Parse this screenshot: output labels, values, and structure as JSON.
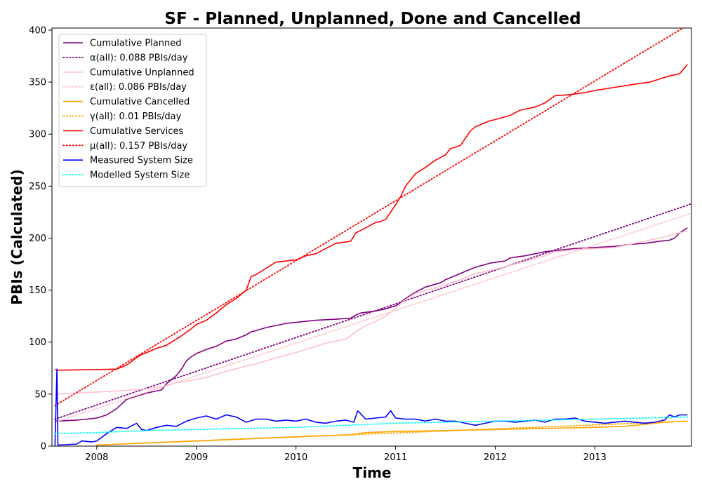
{
  "chart_data": {
    "type": "line",
    "title": "SF - Planned, Unplanned, Done  and Cancelled",
    "xlabel": "Time",
    "ylabel": "PBIs (Calculated)",
    "xlim": [
      2007.55,
      2013.97
    ],
    "ylim": [
      0,
      402
    ],
    "x_ticks": [
      2008,
      2009,
      2010,
      2011,
      2012,
      2013
    ],
    "y_ticks": [
      0,
      50,
      100,
      150,
      200,
      250,
      300,
      350,
      400
    ],
    "grid": false,
    "legend_position": "upper-left",
    "series": [
      {
        "name": "Cumulative Planned",
        "color": "#800080",
        "style": "solid",
        "x": [
          2007.58,
          2007.8,
          2007.9,
          2008.0,
          2008.1,
          2008.2,
          2008.3,
          2008.4,
          2008.5,
          2008.65,
          2008.7,
          2008.8,
          2008.85,
          2008.9,
          2008.95,
          2009.0,
          2009.05,
          2009.1,
          2009.2,
          2009.3,
          2009.4,
          2009.5,
          2009.55,
          2009.6,
          2009.7,
          2009.8,
          2009.9,
          2010.0,
          2010.2,
          2010.4,
          2010.55,
          2010.6,
          2010.65,
          2010.8,
          2010.9,
          2011.0,
          2011.05,
          2011.1,
          2011.2,
          2011.3,
          2011.45,
          2011.5,
          2011.6,
          2011.7,
          2011.8,
          2011.95,
          2012.1,
          2012.15,
          2012.3,
          2012.5,
          2012.6,
          2012.7,
          2012.8,
          2013.0,
          2013.2,
          2013.35,
          2013.5,
          2013.65,
          2013.75,
          2013.8,
          2013.85,
          2013.93
        ],
        "y": [
          24,
          25,
          26,
          27,
          30,
          36,
          45,
          48,
          51,
          54,
          60,
          68,
          74,
          82,
          86,
          89,
          91,
          93,
          96,
          101,
          103,
          107,
          110,
          111,
          114,
          116,
          118,
          119,
          121,
          122,
          123,
          126,
          128,
          130,
          132,
          135,
          138,
          142,
          148,
          153,
          157,
          160,
          164,
          168,
          172,
          176,
          178,
          181,
          183,
          187,
          188,
          189,
          190,
          191,
          192,
          194,
          195,
          197,
          198,
          200,
          205,
          210
        ]
      },
      {
        "name": "α(all): 0.088 PBIs/day",
        "color": "#800080",
        "style": "dotted",
        "x": [
          2007.58,
          2013.97
        ],
        "y": [
          26,
          233
        ]
      },
      {
        "name": "Cumulative Unplanned",
        "color": "#ffc0cb",
        "style": "solid",
        "x": [
          2007.58,
          2007.8,
          2008.0,
          2008.2,
          2008.5,
          2008.7,
          2008.8,
          2009.0,
          2009.1,
          2009.2,
          2009.3,
          2009.5,
          2009.6,
          2009.7,
          2009.8,
          2010.0,
          2010.1,
          2010.2,
          2010.3,
          2010.4,
          2010.5,
          2010.55,
          2010.6,
          2010.7,
          2010.8,
          2010.9,
          2011.0,
          2011.05,
          2011.1,
          2011.2,
          2011.35,
          2011.5,
          2011.65,
          2011.8,
          2012.0,
          2012.2,
          2012.35,
          2012.5,
          2012.6,
          2012.8,
          2013.0,
          2013.2,
          2013.35,
          2013.5,
          2013.65,
          2013.8,
          2013.93
        ],
        "y": [
          50,
          51,
          52,
          53,
          55,
          58,
          61,
          64,
          66,
          69,
          72,
          77,
          79,
          82,
          85,
          90,
          93,
          96,
          99,
          101,
          103,
          106,
          110,
          116,
          120,
          125,
          132,
          137,
          141,
          147,
          151,
          155,
          160,
          166,
          170,
          175,
          179,
          183,
          187,
          189,
          190,
          191,
          194,
          197,
          200,
          204,
          207
        ]
      },
      {
        "name": "ε(all): 0.086 PBIs/day",
        "color": "#ffc0cb",
        "style": "dotted",
        "x": [
          2007.58,
          2013.97
        ],
        "y": [
          23,
          224
        ]
      },
      {
        "name": "Cumulative Cancelled",
        "color": "#ffa500",
        "style": "solid",
        "x": [
          2008.0,
          2008.5,
          2009.0,
          2009.5,
          2010.0,
          2010.3,
          2010.55,
          2010.7,
          2011.0,
          2011.5,
          2012.0,
          2012.5,
          2013.0,
          2013.3,
          2013.5,
          2013.7,
          2013.93
        ],
        "y": [
          1,
          3,
          5,
          7,
          9,
          10,
          11,
          13,
          14,
          15,
          16,
          17,
          18,
          19,
          21,
          23,
          24
        ]
      },
      {
        "name": "γ(all): 0.01 PBIs/day",
        "color": "#ffa500",
        "style": "dotted",
        "x": [
          2008.0,
          2013.93
        ],
        "y": [
          1,
          24
        ]
      },
      {
        "name": "Cumulative Services",
        "color": "#ff0000",
        "style": "solid",
        "x": [
          2007.58,
          2007.6,
          2008.2,
          2008.3,
          2008.4,
          2008.45,
          2008.5,
          2008.6,
          2008.7,
          2008.75,
          2008.85,
          2008.95,
          2009.0,
          2009.1,
          2009.2,
          2009.3,
          2009.4,
          2009.5,
          2009.55,
          2009.6,
          2009.7,
          2009.8,
          2009.9,
          2010.0,
          2010.1,
          2010.2,
          2010.3,
          2010.4,
          2010.55,
          2010.6,
          2010.7,
          2010.8,
          2010.85,
          2010.9,
          2011.0,
          2011.05,
          2011.1,
          2011.2,
          2011.3,
          2011.4,
          2011.5,
          2011.55,
          2011.65,
          2011.7,
          2011.75,
          2011.8,
          2011.9,
          2011.95,
          2012.0,
          2012.15,
          2012.25,
          2012.4,
          2012.5,
          2012.6,
          2012.75,
          2012.9,
          2013.0,
          2013.2,
          2013.4,
          2013.55,
          2013.65,
          2013.75,
          2013.85,
          2013.93
        ],
        "y": [
          74,
          73,
          74,
          78,
          85,
          88,
          90,
          94,
          97,
          100,
          106,
          113,
          117,
          121,
          128,
          136,
          142,
          150,
          163,
          165,
          171,
          177,
          178,
          179,
          183,
          185,
          190,
          195,
          197,
          205,
          210,
          215,
          216,
          218,
          232,
          240,
          250,
          262,
          268,
          275,
          280,
          286,
          289,
          296,
          303,
          307,
          311,
          313,
          314,
          318,
          323,
          326,
          330,
          337,
          338,
          340,
          342,
          345,
          348,
          350,
          353,
          356,
          358,
          367
        ]
      },
      {
        "name": "μ(all): 0.157 PBIs/day",
        "color": "#ff0000",
        "style": "dotted",
        "x": [
          2007.58,
          2013.97
        ],
        "y": [
          39,
          407
        ]
      },
      {
        "name": "Measured System Size",
        "color": "#0000ff",
        "style": "solid",
        "x": [
          2007.58,
          2007.6,
          2007.61,
          2007.62,
          2007.8,
          2007.85,
          2007.95,
          2008.0,
          2008.1,
          2008.2,
          2008.3,
          2008.4,
          2008.45,
          2008.5,
          2008.6,
          2008.7,
          2008.8,
          2008.9,
          2009.0,
          2009.1,
          2009.2,
          2009.3,
          2009.4,
          2009.5,
          2009.6,
          2009.7,
          2009.8,
          2009.9,
          2010.0,
          2010.1,
          2010.2,
          2010.3,
          2010.4,
          2010.5,
          2010.58,
          2010.62,
          2010.7,
          2010.8,
          2010.9,
          2010.95,
          2011.0,
          2011.1,
          2011.2,
          2011.3,
          2011.4,
          2011.5,
          2011.6,
          2011.7,
          2011.8,
          2011.9,
          2012.0,
          2012.1,
          2012.2,
          2012.3,
          2012.4,
          2012.5,
          2012.6,
          2012.7,
          2012.8,
          2012.9,
          2013.0,
          2013.1,
          2013.2,
          2013.3,
          2013.4,
          2013.5,
          2013.6,
          2013.7,
          2013.75,
          2013.8,
          2013.85,
          2013.93
        ],
        "y": [
          0,
          74,
          1,
          1,
          2,
          5,
          4,
          5,
          12,
          18,
          17,
          22,
          16,
          15,
          18,
          20,
          19,
          24,
          27,
          29,
          26,
          30,
          28,
          23,
          26,
          26,
          24,
          25,
          24,
          26,
          23,
          22,
          24,
          25,
          23,
          34,
          26,
          27,
          28,
          34,
          27,
          26,
          26,
          24,
          26,
          24,
          24,
          22,
          20,
          22,
          24,
          24,
          23,
          24,
          25,
          23,
          26,
          26,
          27,
          24,
          23,
          22,
          23,
          24,
          23,
          22,
          23,
          25,
          30,
          28,
          30,
          30
        ]
      },
      {
        "name": "Modelled System Size",
        "color": "#00ffff",
        "style": "dotted",
        "x": [
          2007.58,
          2008.0,
          2008.5,
          2009.0,
          2009.5,
          2010.0,
          2010.5,
          2011.0,
          2011.5,
          2012.0,
          2012.5,
          2013.0,
          2013.5,
          2013.93
        ],
        "y": [
          12,
          13,
          15,
          16,
          17,
          18,
          20,
          22,
          23,
          24,
          25,
          26,
          27,
          28
        ]
      }
    ]
  }
}
